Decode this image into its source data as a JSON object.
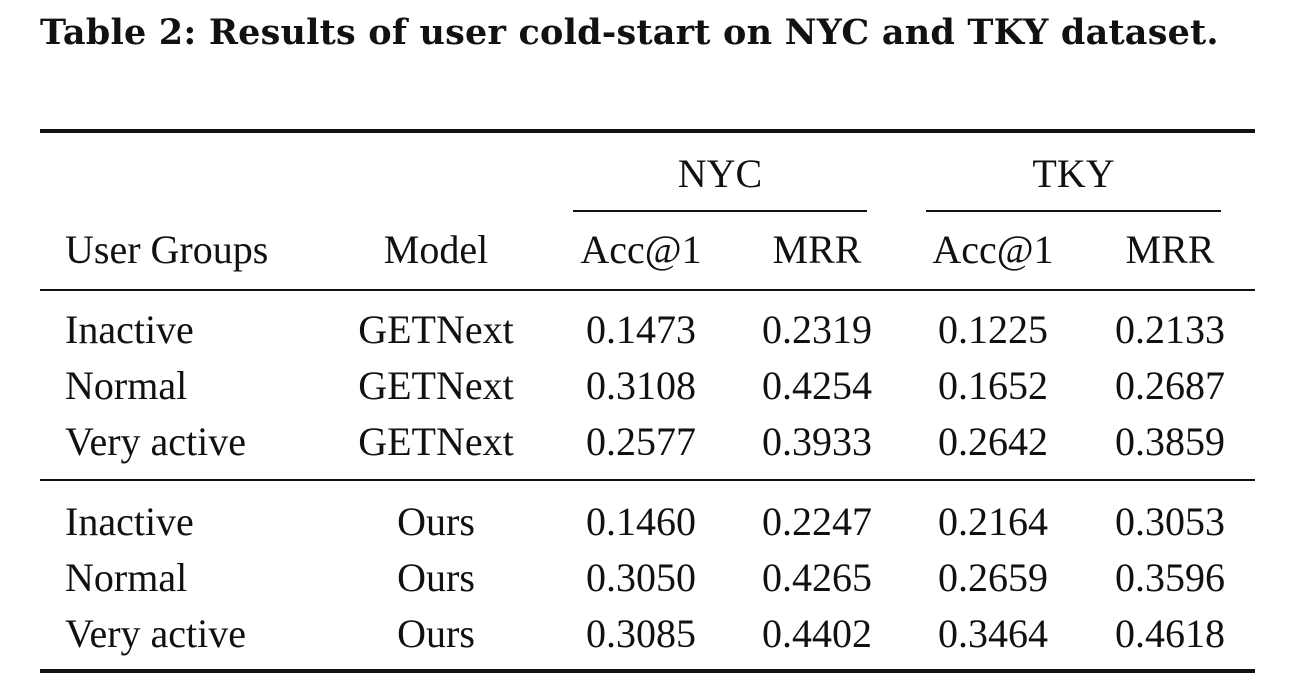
{
  "caption": "Table 2: Results of user cold-start on NYC and TKY dataset.",
  "header": {
    "datasets": [
      "NYC",
      "TKY"
    ],
    "columns": [
      "User Groups",
      "Model",
      "Acc@1",
      "MRR",
      "Acc@1",
      "MRR"
    ]
  },
  "rows": [
    {
      "group": "Inactive",
      "model": "GETNext",
      "nyc_acc1": "0.1473",
      "nyc_mrr": "0.2319",
      "tky_acc1": "0.1225",
      "tky_mrr": "0.2133"
    },
    {
      "group": "Normal",
      "model": "GETNext",
      "nyc_acc1": "0.3108",
      "nyc_mrr": "0.4254",
      "tky_acc1": "0.1652",
      "tky_mrr": "0.2687"
    },
    {
      "group": "Very active",
      "model": "GETNext",
      "nyc_acc1": "0.2577",
      "nyc_mrr": "0.3933",
      "tky_acc1": "0.2642",
      "tky_mrr": "0.3859"
    },
    {
      "group": "Inactive",
      "model": "Ours",
      "nyc_acc1": "0.1460",
      "nyc_mrr": "0.2247",
      "tky_acc1": "0.2164",
      "tky_mrr": "0.3053"
    },
    {
      "group": "Normal",
      "model": "Ours",
      "nyc_acc1": "0.3050",
      "nyc_mrr": "0.4265",
      "tky_acc1": "0.2659",
      "tky_mrr": "0.3596"
    },
    {
      "group": "Very active",
      "model": "Ours",
      "nyc_acc1": "0.3085",
      "nyc_mrr": "0.4402",
      "tky_acc1": "0.3464",
      "tky_mrr": "0.4618"
    }
  ]
}
